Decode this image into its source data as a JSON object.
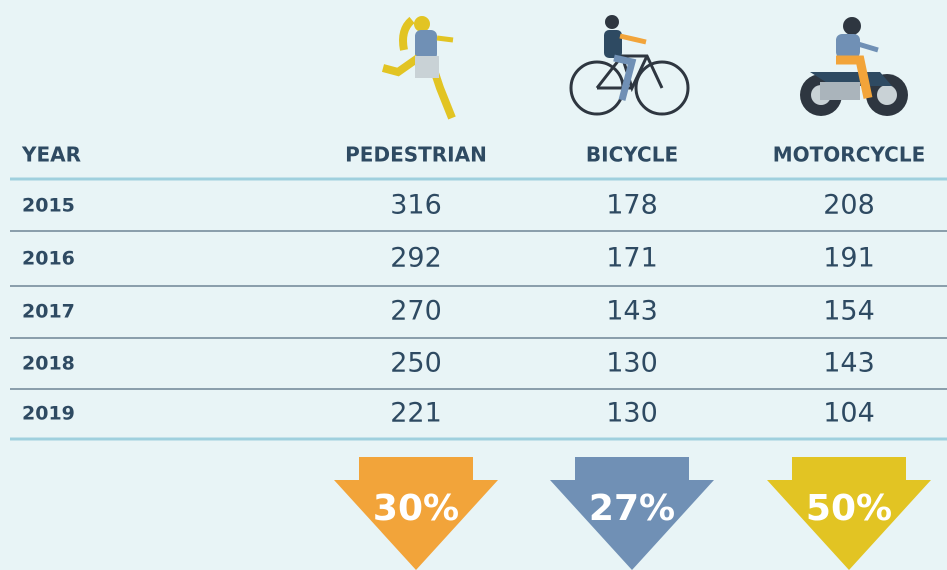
{
  "table": {
    "header": [
      "YEAR",
      "PEDESTRIAN",
      "BICYCLE",
      "MOTORCYCLE"
    ],
    "rows": [
      [
        "2015",
        "316",
        "178",
        "208"
      ],
      [
        "2016",
        "292",
        "171",
        "191"
      ],
      [
        "2017",
        "270",
        "143",
        "154"
      ],
      [
        "2018",
        "250",
        "130",
        "143"
      ],
      [
        "2019",
        "221",
        "130",
        "104"
      ]
    ]
  },
  "arrows": [
    "30%",
    "27%",
    "50%"
  ]
}
